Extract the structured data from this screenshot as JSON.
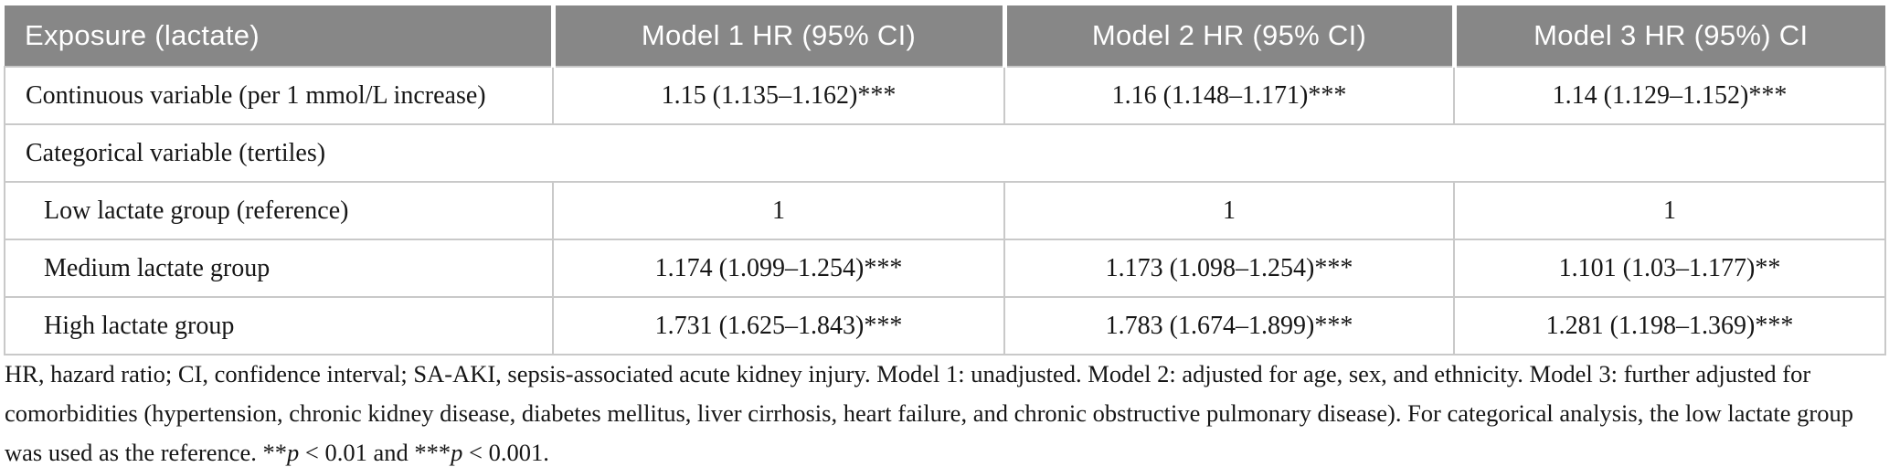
{
  "table": {
    "columns": [
      "Exposure (lactate)",
      "Model 1 HR (95% CI)",
      "Model 2 HR (95% CI)",
      "Model 3 HR (95%) CI"
    ],
    "rows": [
      {
        "label": "Continuous variable (per 1 mmol/L increase)",
        "values": [
          "1.15 (1.135–1.162)***",
          "1.16 (1.148–1.171)***",
          "1.14 (1.129–1.152)***"
        ]
      },
      {
        "label": "Categorical variable (tertiles)",
        "values": []
      },
      {
        "label": "Low lactate group (reference)",
        "values": [
          "1",
          "1",
          "1"
        ]
      },
      {
        "label": "Medium lactate group",
        "values": [
          "1.174 (1.099–1.254)***",
          "1.173 (1.098–1.254)***",
          "1.101 (1.03–1.177)**"
        ]
      },
      {
        "label": "High lactate group",
        "values": [
          "1.731 (1.625–1.843)***",
          "1.783 (1.674–1.899)***",
          "1.281 (1.198–1.369)***"
        ]
      }
    ]
  },
  "footnote": {
    "part1": "HR, hazard ratio; CI, confidence interval; SA-AKI, sepsis-associated acute kidney injury. Model 1: unadjusted. Model 2: adjusted for age, sex, and ethnicity. Model 3: further adjusted for comorbidities (hypertension, chronic kidney disease, diabetes mellitus, liver cirrhosis, heart failure, and chronic obstructive pulmonary disease). For categorical analysis, the low lactate group was used as the reference. ",
    "stars_2": "**",
    "p_1": "p",
    "mid": " < 0.01 and ",
    "stars_3": "***",
    "p_2": "p",
    "end": " < 0.001."
  },
  "colors": {
    "header_bg": "#878787",
    "header_text": "#ffffff",
    "border": "#c9c9c9",
    "body_text": "#161616"
  }
}
